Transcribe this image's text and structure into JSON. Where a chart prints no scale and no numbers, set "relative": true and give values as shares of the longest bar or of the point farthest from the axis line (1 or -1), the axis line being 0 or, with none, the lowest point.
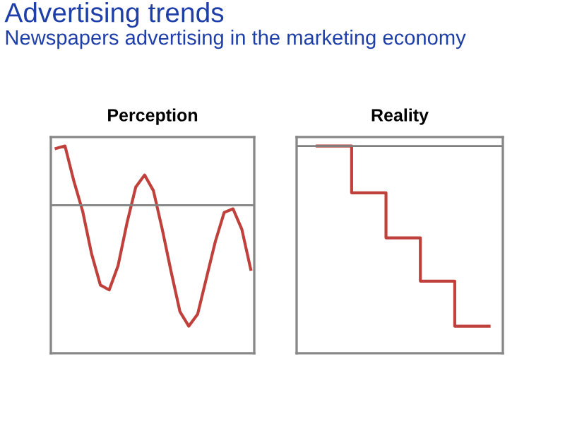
{
  "chart_data": [
    {
      "type": "line",
      "title": "Perception",
      "annotations": [
        "Advertising trends",
        "Newspapers advertising in the marketing economy"
      ],
      "relative": true,
      "categories": [
        null,
        null,
        null,
        null,
        null,
        null,
        null,
        null,
        null,
        null,
        null,
        null,
        null,
        null,
        null,
        null,
        null,
        null,
        null,
        null,
        null,
        null,
        null
      ],
      "series": [
        {
          "color": "#c0403c",
          "values": [
            0.47,
            0.49,
            0.2,
            -0.05,
            -0.4,
            -0.66,
            -0.7,
            -0.5,
            -0.15,
            0.15,
            0.25,
            0.12,
            -0.2,
            -0.55,
            -0.88,
            -1.0,
            -0.9,
            -0.6,
            -0.3,
            -0.06,
            -0.03,
            -0.2,
            -0.53
          ]
        }
      ],
      "marker": "none",
      "line_style": "solid"
    },
    {
      "type": "step",
      "title": "Reality",
      "relative": true,
      "categories": [
        null,
        null,
        null,
        null,
        null,
        null
      ],
      "series": [
        {
          "color": "#c0403c",
          "values": [
            0,
            -0.26,
            -0.51,
            -0.75,
            -1,
            -1
          ]
        }
      ],
      "marker": "none",
      "line_style": "solid"
    }
  ]
}
